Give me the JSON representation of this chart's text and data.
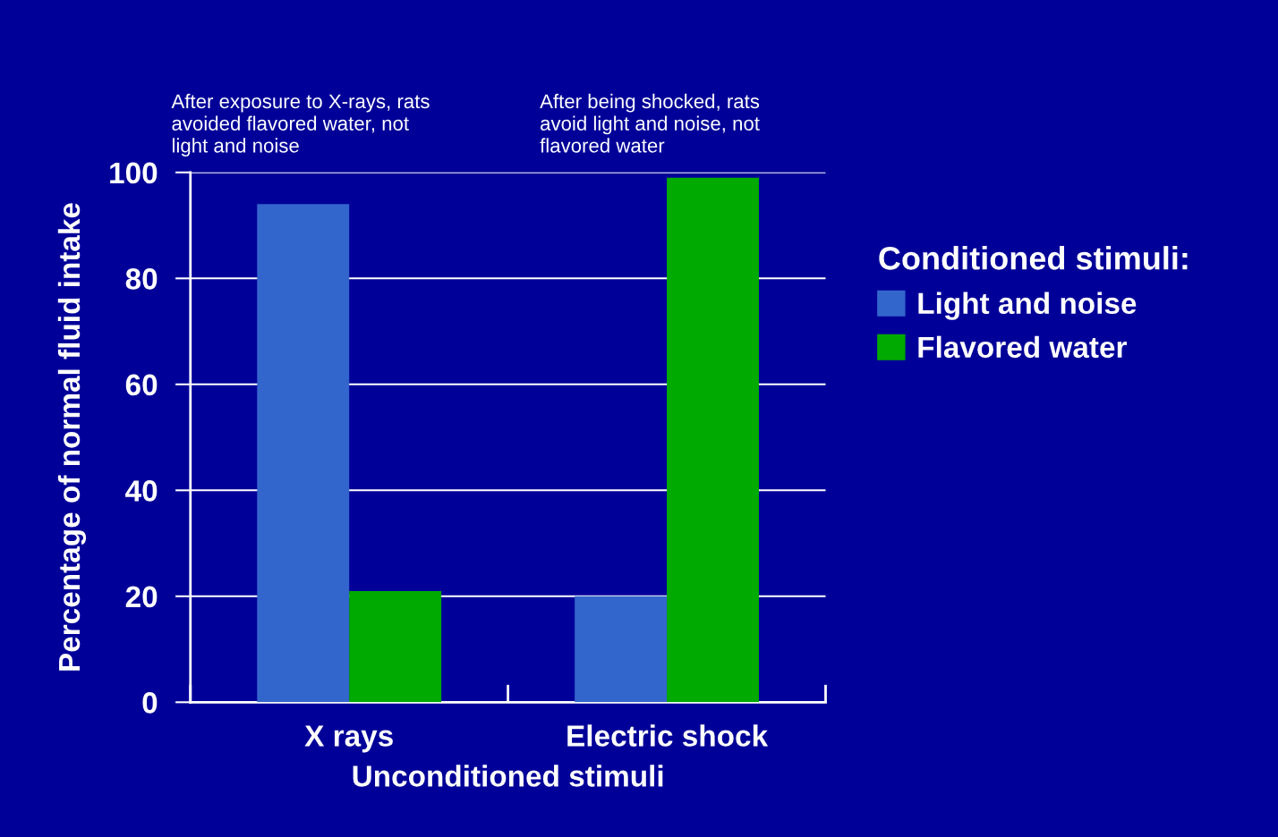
{
  "chart_data": {
    "type": "bar",
    "xlabel": "Unconditioned stimuli",
    "ylabel": "Percentage of normal fluid intake",
    "legend_title": "Conditioned stimuli:",
    "categories": [
      "X rays",
      "Electric shock"
    ],
    "series": [
      {
        "name": "Light and noise",
        "color": "#3366cc",
        "values": [
          94,
          20
        ]
      },
      {
        "name": "Flavored water",
        "color": "#00aa00",
        "values": [
          21,
          99
        ]
      }
    ],
    "ylim": [
      0,
      100
    ],
    "yticks": [
      0,
      20,
      40,
      60,
      80,
      100
    ],
    "grid": "y",
    "legend": "right",
    "annotations": [
      "After exposure to X-rays, rats avoided flavored water, not light and noise",
      "After being shocked, rats avoid light and noise, not flavored water"
    ]
  }
}
